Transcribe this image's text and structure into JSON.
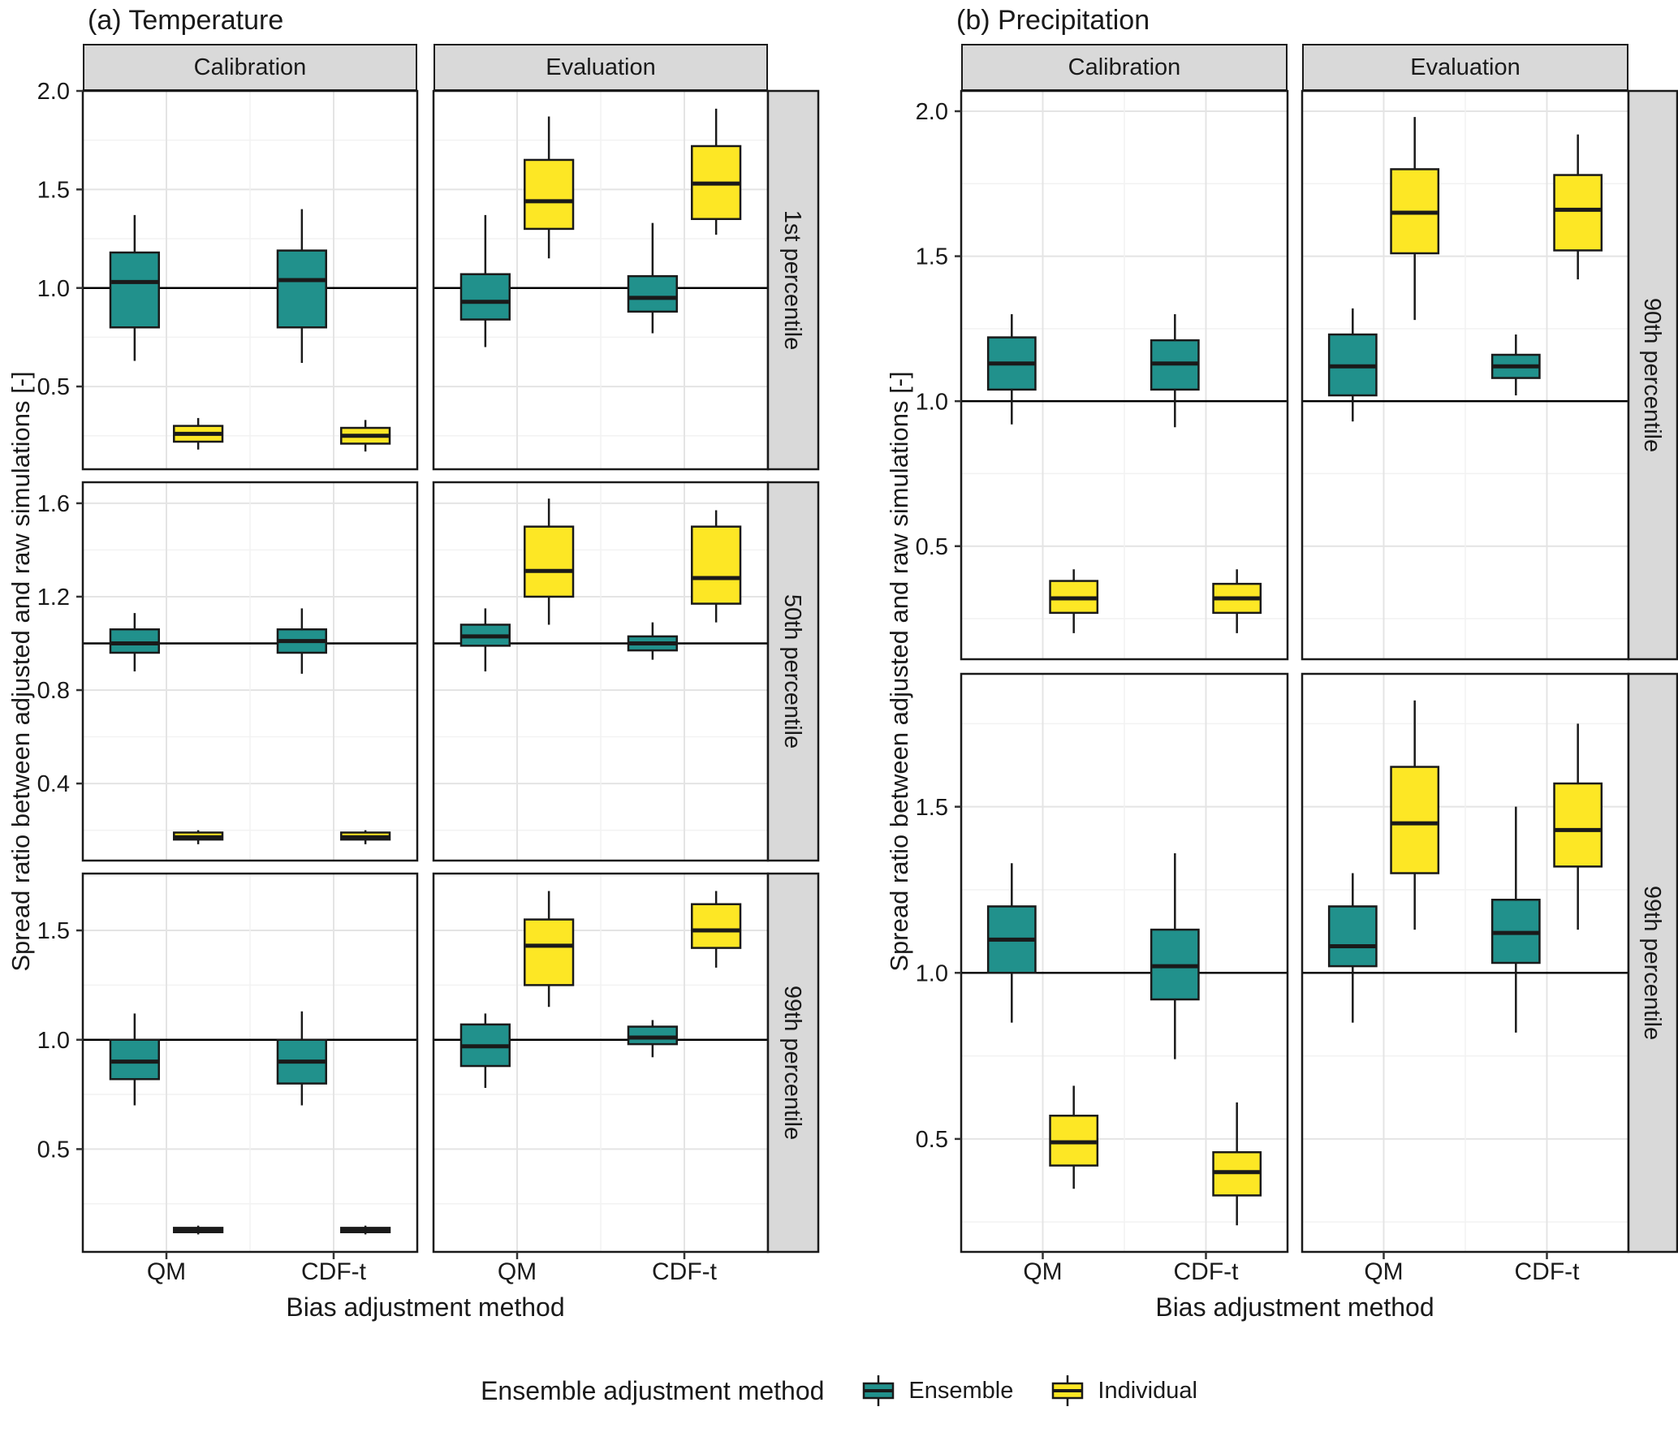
{
  "chart_data": {
    "type": "boxplot",
    "panels": [
      {
        "title": "(a) Temperature",
        "ylabel": "Spread ratio between adjusted and raw simulations [-]",
        "xlabel": "Bias adjustment method",
        "columns": [
          "Calibration",
          "Evaluation"
        ],
        "x_categories": [
          "QM",
          "CDF-t"
        ],
        "rows": [
          {
            "label": "1st percentile",
            "ylim": [
              0.08,
              2.0
            ],
            "yticks": [
              0.5,
              1.0,
              1.5,
              2.0
            ],
            "ytick_labels": [
              "0.5",
              "1.0",
              "1.5",
              "2.0"
            ],
            "ref": 1.0,
            "cells": [
              {
                "column": "Calibration",
                "boxes": [
                  {
                    "x": "QM",
                    "group": "Ensemble",
                    "whislo": 0.63,
                    "q1": 0.8,
                    "med": 1.03,
                    "q3": 1.18,
                    "whishi": 1.37
                  },
                  {
                    "x": "QM",
                    "group": "Individual",
                    "whislo": 0.18,
                    "q1": 0.22,
                    "med": 0.26,
                    "q3": 0.3,
                    "whishi": 0.34
                  },
                  {
                    "x": "CDF-t",
                    "group": "Ensemble",
                    "whislo": 0.62,
                    "q1": 0.8,
                    "med": 1.04,
                    "q3": 1.19,
                    "whishi": 1.4
                  },
                  {
                    "x": "CDF-t",
                    "group": "Individual",
                    "whislo": 0.17,
                    "q1": 0.21,
                    "med": 0.25,
                    "q3": 0.29,
                    "whishi": 0.33
                  }
                ]
              },
              {
                "column": "Evaluation",
                "boxes": [
                  {
                    "x": "QM",
                    "group": "Ensemble",
                    "whislo": 0.7,
                    "q1": 0.84,
                    "med": 0.93,
                    "q3": 1.07,
                    "whishi": 1.37
                  },
                  {
                    "x": "QM",
                    "group": "Individual",
                    "whislo": 1.15,
                    "q1": 1.3,
                    "med": 1.44,
                    "q3": 1.65,
                    "whishi": 1.87
                  },
                  {
                    "x": "CDF-t",
                    "group": "Ensemble",
                    "whislo": 0.77,
                    "q1": 0.88,
                    "med": 0.95,
                    "q3": 1.06,
                    "whishi": 1.33
                  },
                  {
                    "x": "CDF-t",
                    "group": "Individual",
                    "whislo": 1.27,
                    "q1": 1.35,
                    "med": 1.53,
                    "q3": 1.72,
                    "whishi": 1.91
                  }
                ]
              }
            ]
          },
          {
            "label": "50th percentile",
            "ylim": [
              0.07,
              1.69
            ],
            "yticks": [
              0.4,
              0.8,
              1.2,
              1.6
            ],
            "ytick_labels": [
              "0.4",
              "0.8",
              "1.2",
              "1.6"
            ],
            "ref": 1.0,
            "cells": [
              {
                "column": "Calibration",
                "boxes": [
                  {
                    "x": "QM",
                    "group": "Ensemble",
                    "whislo": 0.88,
                    "q1": 0.96,
                    "med": 1.0,
                    "q3": 1.06,
                    "whishi": 1.13
                  },
                  {
                    "x": "QM",
                    "group": "Individual",
                    "whislo": 0.14,
                    "q1": 0.16,
                    "med": 0.17,
                    "q3": 0.19,
                    "whishi": 0.2
                  },
                  {
                    "x": "CDF-t",
                    "group": "Ensemble",
                    "whislo": 0.87,
                    "q1": 0.96,
                    "med": 1.01,
                    "q3": 1.06,
                    "whishi": 1.15
                  },
                  {
                    "x": "CDF-t",
                    "group": "Individual",
                    "whislo": 0.14,
                    "q1": 0.16,
                    "med": 0.17,
                    "q3": 0.19,
                    "whishi": 0.2
                  }
                ]
              },
              {
                "column": "Evaluation",
                "boxes": [
                  {
                    "x": "QM",
                    "group": "Ensemble",
                    "whislo": 0.88,
                    "q1": 0.99,
                    "med": 1.03,
                    "q3": 1.08,
                    "whishi": 1.15
                  },
                  {
                    "x": "QM",
                    "group": "Individual",
                    "whislo": 1.08,
                    "q1": 1.2,
                    "med": 1.31,
                    "q3": 1.5,
                    "whishi": 1.62
                  },
                  {
                    "x": "CDF-t",
                    "group": "Ensemble",
                    "whislo": 0.93,
                    "q1": 0.97,
                    "med": 1.0,
                    "q3": 1.03,
                    "whishi": 1.09
                  },
                  {
                    "x": "CDF-t",
                    "group": "Individual",
                    "whislo": 1.09,
                    "q1": 1.17,
                    "med": 1.28,
                    "q3": 1.5,
                    "whishi": 1.57
                  }
                ]
              }
            ]
          },
          {
            "label": "99th percentile",
            "ylim": [
              0.03,
              1.76
            ],
            "yticks": [
              0.5,
              1.0,
              1.5
            ],
            "ytick_labels": [
              "0.5",
              "1.0",
              "1.5"
            ],
            "ref": 1.0,
            "cells": [
              {
                "column": "Calibration",
                "boxes": [
                  {
                    "x": "QM",
                    "group": "Ensemble",
                    "whislo": 0.7,
                    "q1": 0.82,
                    "med": 0.9,
                    "q3": 1.0,
                    "whishi": 1.12
                  },
                  {
                    "x": "QM",
                    "group": "Individual",
                    "whislo": 0.11,
                    "q1": 0.12,
                    "med": 0.13,
                    "q3": 0.14,
                    "whishi": 0.15
                  },
                  {
                    "x": "CDF-t",
                    "group": "Ensemble",
                    "whislo": 0.7,
                    "q1": 0.8,
                    "med": 0.9,
                    "q3": 1.0,
                    "whishi": 1.13
                  },
                  {
                    "x": "CDF-t",
                    "group": "Individual",
                    "whislo": 0.11,
                    "q1": 0.12,
                    "med": 0.13,
                    "q3": 0.14,
                    "whishi": 0.15
                  }
                ]
              },
              {
                "column": "Evaluation",
                "boxes": [
                  {
                    "x": "QM",
                    "group": "Ensemble",
                    "whislo": 0.78,
                    "q1": 0.88,
                    "med": 0.97,
                    "q3": 1.07,
                    "whishi": 1.12
                  },
                  {
                    "x": "QM",
                    "group": "Individual",
                    "whislo": 1.15,
                    "q1": 1.25,
                    "med": 1.43,
                    "q3": 1.55,
                    "whishi": 1.68
                  },
                  {
                    "x": "CDF-t",
                    "group": "Ensemble",
                    "whislo": 0.92,
                    "q1": 0.98,
                    "med": 1.01,
                    "q3": 1.06,
                    "whishi": 1.09
                  },
                  {
                    "x": "CDF-t",
                    "group": "Individual",
                    "whislo": 1.33,
                    "q1": 1.42,
                    "med": 1.5,
                    "q3": 1.62,
                    "whishi": 1.68
                  }
                ]
              }
            ]
          }
        ]
      },
      {
        "title": "(b) Precipitation",
        "ylabel": "Spread ratio between adjusted and raw simulations [-]",
        "xlabel": "Bias adjustment method",
        "columns": [
          "Calibration",
          "Evaluation"
        ],
        "x_categories": [
          "QM",
          "CDF-t"
        ],
        "rows": [
          {
            "label": "90th percentile",
            "ylim": [
              0.11,
              2.07
            ],
            "yticks": [
              0.5,
              1.0,
              1.5,
              2.0
            ],
            "ytick_labels": [
              "0.5",
              "1.0",
              "1.5",
              "2.0"
            ],
            "ref": 1.0,
            "cells": [
              {
                "column": "Calibration",
                "boxes": [
                  {
                    "x": "QM",
                    "group": "Ensemble",
                    "whislo": 0.92,
                    "q1": 1.04,
                    "med": 1.13,
                    "q3": 1.22,
                    "whishi": 1.3
                  },
                  {
                    "x": "QM",
                    "group": "Individual",
                    "whislo": 0.2,
                    "q1": 0.27,
                    "med": 0.32,
                    "q3": 0.38,
                    "whishi": 0.42
                  },
                  {
                    "x": "CDF-t",
                    "group": "Ensemble",
                    "whislo": 0.91,
                    "q1": 1.04,
                    "med": 1.13,
                    "q3": 1.21,
                    "whishi": 1.3
                  },
                  {
                    "x": "CDF-t",
                    "group": "Individual",
                    "whislo": 0.2,
                    "q1": 0.27,
                    "med": 0.32,
                    "q3": 0.37,
                    "whishi": 0.42
                  }
                ]
              },
              {
                "column": "Evaluation",
                "boxes": [
                  {
                    "x": "QM",
                    "group": "Ensemble",
                    "whislo": 0.93,
                    "q1": 1.02,
                    "med": 1.12,
                    "q3": 1.23,
                    "whishi": 1.32
                  },
                  {
                    "x": "QM",
                    "group": "Individual",
                    "whislo": 1.28,
                    "q1": 1.51,
                    "med": 1.65,
                    "q3": 1.8,
                    "whishi": 1.98
                  },
                  {
                    "x": "CDF-t",
                    "group": "Ensemble",
                    "whislo": 1.02,
                    "q1": 1.08,
                    "med": 1.12,
                    "q3": 1.16,
                    "whishi": 1.23
                  },
                  {
                    "x": "CDF-t",
                    "group": "Individual",
                    "whislo": 1.42,
                    "q1": 1.52,
                    "med": 1.66,
                    "q3": 1.78,
                    "whishi": 1.92
                  }
                ]
              }
            ]
          },
          {
            "label": "99th percentile",
            "ylim": [
              0.16,
              1.9
            ],
            "yticks": [
              0.5,
              1.0,
              1.5
            ],
            "ytick_labels": [
              "0.5",
              "1.0",
              "1.5"
            ],
            "ref": 1.0,
            "cells": [
              {
                "column": "Calibration",
                "boxes": [
                  {
                    "x": "QM",
                    "group": "Ensemble",
                    "whislo": 0.85,
                    "q1": 1.0,
                    "med": 1.1,
                    "q3": 1.2,
                    "whishi": 1.33
                  },
                  {
                    "x": "QM",
                    "group": "Individual",
                    "whislo": 0.35,
                    "q1": 0.42,
                    "med": 0.49,
                    "q3": 0.57,
                    "whishi": 0.66
                  },
                  {
                    "x": "CDF-t",
                    "group": "Ensemble",
                    "whislo": 0.74,
                    "q1": 0.92,
                    "med": 1.02,
                    "q3": 1.13,
                    "whishi": 1.36
                  },
                  {
                    "x": "CDF-t",
                    "group": "Individual",
                    "whislo": 0.24,
                    "q1": 0.33,
                    "med": 0.4,
                    "q3": 0.46,
                    "whishi": 0.61
                  }
                ]
              },
              {
                "column": "Evaluation",
                "boxes": [
                  {
                    "x": "QM",
                    "group": "Ensemble",
                    "whislo": 0.85,
                    "q1": 1.02,
                    "med": 1.08,
                    "q3": 1.2,
                    "whishi": 1.3
                  },
                  {
                    "x": "QM",
                    "group": "Individual",
                    "whislo": 1.13,
                    "q1": 1.3,
                    "med": 1.45,
                    "q3": 1.62,
                    "whishi": 1.82
                  },
                  {
                    "x": "CDF-t",
                    "group": "Ensemble",
                    "whislo": 0.82,
                    "q1": 1.03,
                    "med": 1.12,
                    "q3": 1.22,
                    "whishi": 1.5
                  },
                  {
                    "x": "CDF-t",
                    "group": "Individual",
                    "whislo": 1.13,
                    "q1": 1.32,
                    "med": 1.43,
                    "q3": 1.57,
                    "whishi": 1.75
                  }
                ]
              }
            ]
          }
        ]
      }
    ],
    "legend": {
      "title": "Ensemble adjustment method",
      "entries": [
        {
          "label": "Ensemble",
          "color": "#21918c"
        },
        {
          "label": "Individual",
          "color": "#FDE725"
        }
      ]
    }
  }
}
